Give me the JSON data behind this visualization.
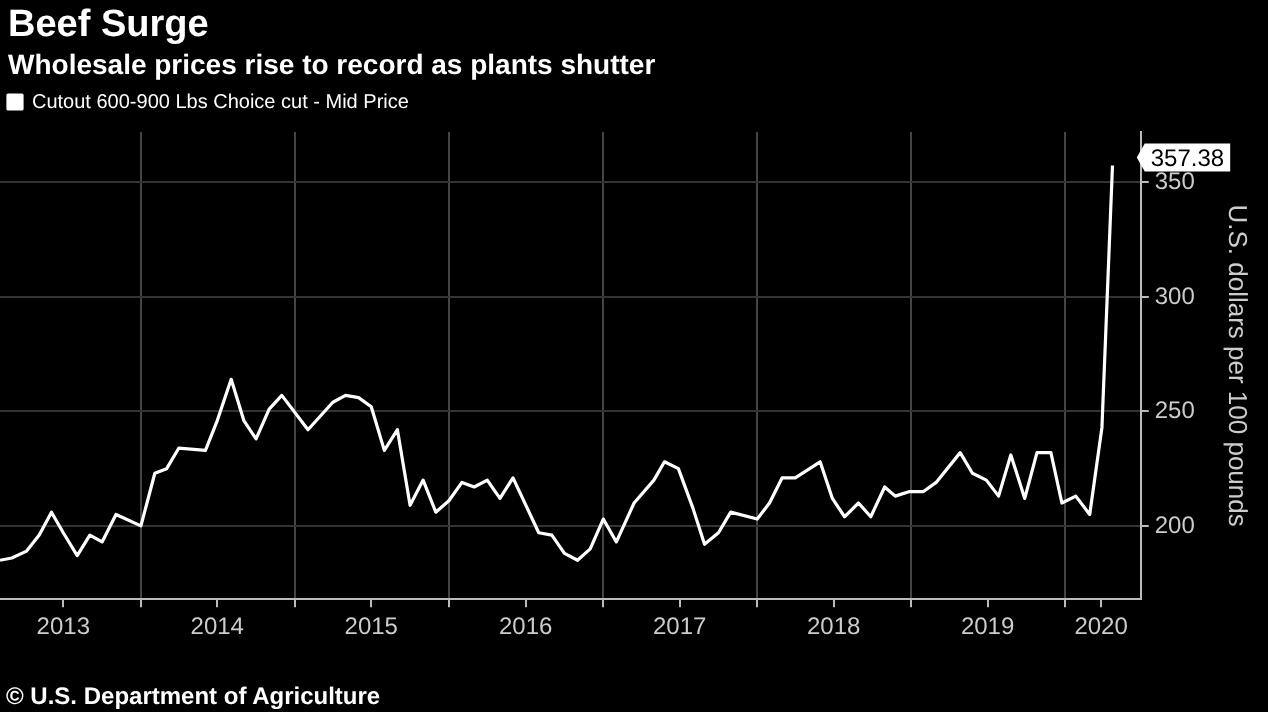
{
  "chart_data": {
    "type": "line",
    "title": "Beef Surge",
    "subtitle": "Wholesale prices rise to record as plants shutter",
    "ylabel": "U.S. dollars per 100 pounds",
    "series": [
      {
        "name": "Cutout 600-900 Lbs Choice cut - Mid Price",
        "color": "#ffffff",
        "x": [
          "2013-02-01",
          "2013-03-01",
          "2013-04-05",
          "2013-05-05",
          "2013-06-03",
          "2013-07-01",
          "2013-08-03",
          "2013-09-02",
          "2013-10-01",
          "2013-11-03",
          "2014-01-01",
          "2014-02-03",
          "2014-03-03",
          "2014-04-01",
          "2014-06-03",
          "2014-07-01",
          "2014-08-03",
          "2014-09-02",
          "2014-10-01",
          "2014-11-01",
          "2014-12-01",
          "2015-02-01",
          "2015-04-01",
          "2015-05-01",
          "2015-06-01",
          "2015-07-01",
          "2015-08-01",
          "2015-09-01",
          "2015-10-01",
          "2015-11-01",
          "2015-12-01",
          "2016-01-01",
          "2016-02-01",
          "2016-03-01",
          "2016-04-01",
          "2016-05-01",
          "2016-06-01",
          "2016-08-01",
          "2016-09-01",
          "2016-10-01",
          "2016-11-01",
          "2016-12-01",
          "2017-01-01",
          "2017-02-01",
          "2017-03-15",
          "2017-05-01",
          "2017-05-26",
          "2017-06-28",
          "2017-08-01",
          "2017-08-29",
          "2017-10-01",
          "2017-10-30",
          "2018-01-01",
          "2018-01-30",
          "2018-03-01",
          "2018-04-01",
          "2018-05-30",
          "2018-06-28",
          "2018-07-27",
          "2018-08-29",
          "2018-09-27",
          "2018-10-30",
          "2018-11-24",
          "2018-12-28",
          "2019-01-30",
          "2019-03-01",
          "2019-04-27",
          "2019-05-26",
          "2019-06-28",
          "2019-07-27",
          "2019-08-25",
          "2019-09-27",
          "2019-10-26",
          "2019-11-28",
          "2019-12-24",
          "2020-01-26",
          "2020-02-28",
          "2020-03-28",
          "2020-04-22"
        ],
        "values": [
          185,
          186,
          189,
          196,
          206,
          197,
          187,
          196,
          193,
          205,
          200,
          223,
          225,
          234,
          233,
          246,
          264,
          246,
          238,
          251,
          257,
          242,
          254,
          257,
          256,
          252,
          233,
          242,
          209,
          220,
          206,
          211,
          219,
          217,
          220,
          212,
          221,
          197,
          196,
          188,
          185,
          190,
          203,
          193,
          210,
          220,
          228,
          225,
          208,
          192,
          197,
          206,
          203,
          210,
          221,
          221,
          228,
          212,
          204,
          210,
          204,
          217,
          213,
          215,
          215,
          219,
          232,
          223,
          220,
          213,
          231,
          212,
          232,
          232,
          210,
          213,
          205,
          243,
          357.38
        ]
      }
    ],
    "xlim": [
      "2013-02-01",
      "2020-06-28"
    ],
    "xticks": [
      {
        "value": "2013-07-01",
        "label": "2013"
      },
      {
        "value": "2014-01-01",
        "label": null
      },
      {
        "value": "2014-07-01",
        "label": "2014"
      },
      {
        "value": "2015-01-01",
        "label": null
      },
      {
        "value": "2015-07-01",
        "label": "2015"
      },
      {
        "value": "2016-01-01",
        "label": null
      },
      {
        "value": "2016-07-01",
        "label": "2016"
      },
      {
        "value": "2017-01-01",
        "label": null
      },
      {
        "value": "2017-07-01",
        "label": "2017"
      },
      {
        "value": "2018-01-01",
        "label": null
      },
      {
        "value": "2018-07-01",
        "label": "2018"
      },
      {
        "value": "2019-01-01",
        "label": null
      },
      {
        "value": "2019-07-01",
        "label": "2019"
      },
      {
        "value": "2020-01-01",
        "label": null
      },
      {
        "value": "2020-03-26",
        "label": "2020"
      }
    ],
    "ylim": [
      168,
      372
    ],
    "yticks": [
      200,
      250,
      300,
      350
    ],
    "grid": true,
    "legend": "top left",
    "marker": "none",
    "line_style": "solid",
    "annotations": [
      {
        "text": "357.38",
        "x": "2020-04-22",
        "y": 357.38
      },
      "© U.S. Department of Agriculture"
    ]
  }
}
